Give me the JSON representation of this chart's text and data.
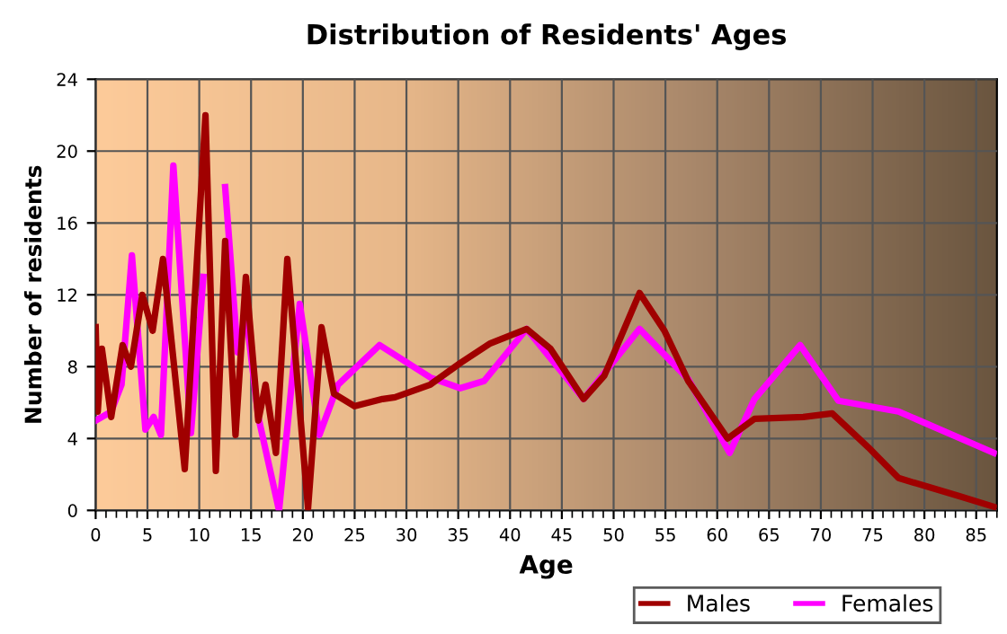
{
  "chart_data": {
    "type": "line",
    "title": "Distribution of Residents' Ages",
    "xlabel": "Age",
    "ylabel": "Number of residents",
    "xlim": [
      0,
      87
    ],
    "xticks": [
      0,
      5,
      10,
      15,
      20,
      25,
      30,
      35,
      40,
      45,
      50,
      55,
      60,
      65,
      70,
      75,
      80,
      85
    ],
    "ylim": [
      0,
      24
    ],
    "yticks": [
      0,
      4,
      8,
      12,
      16,
      20,
      24
    ],
    "grid": true,
    "legend": "bottom right",
    "line_style": "solid",
    "series": [
      {
        "name": "Males",
        "color": "#a00000",
        "x": [
          0,
          0.2,
          0.6,
          1.5,
          2.6,
          3.4,
          4.5,
          5.5,
          6.5,
          8.6,
          10.6,
          11.6,
          12.5,
          13.5,
          14.5,
          15.7,
          16.4,
          17.4,
          18.5,
          20.5,
          21.8,
          23,
          25,
          27.7,
          28.9,
          32.3,
          35.2,
          38.1,
          41.6,
          43.9,
          47.1,
          49.1,
          52.5,
          54.9,
          57.2,
          61,
          63.6,
          68.3,
          71.1,
          74.6,
          77.5,
          80.4,
          83.3,
          86.7
        ],
        "values": [
          10.2,
          5.5,
          9,
          5.2,
          9.2,
          8,
          12,
          10,
          14,
          2.3,
          22,
          2.2,
          15,
          4.2,
          13,
          5,
          7,
          3.2,
          14,
          0.1,
          10.2,
          6.5,
          5.8,
          6.2,
          6.3,
          7,
          8.2,
          9.3,
          10.1,
          9,
          6.2,
          7.5,
          12.1,
          10,
          7.2,
          4,
          5.1,
          5.2,
          5.4,
          3.5,
          1.8,
          1.3,
          0.8,
          0.2
        ]
      },
      {
        "name": "Females",
        "color": "#ff00ff",
        "x": [
          0,
          0.6,
          1.5,
          2.5,
          3.5,
          4.8,
          5.6,
          6.3,
          7.5,
          9.2,
          10.4,
          11.5,
          12.5,
          13.7,
          14.5,
          15.7,
          17.7,
          19.7,
          21.6,
          23.4,
          27.4,
          32.3,
          35.2,
          37.5,
          41.6,
          47.1,
          52.5,
          57.2,
          61.2,
          63.6,
          68,
          71.7,
          77.5,
          86.7
        ],
        "values": [
          5,
          5.2,
          5.5,
          7,
          14.2,
          4.5,
          5.2,
          4.2,
          19.2,
          4.3,
          13,
          null,
          18,
          8.8,
          11,
          5.2,
          0,
          11.5,
          4.2,
          7,
          9.2,
          7.4,
          6.8,
          7.2,
          10.1,
          6.2,
          10.1,
          7.3,
          3.2,
          6.2,
          9.2,
          6.1,
          5.5,
          3.2
        ]
      }
    ]
  }
}
